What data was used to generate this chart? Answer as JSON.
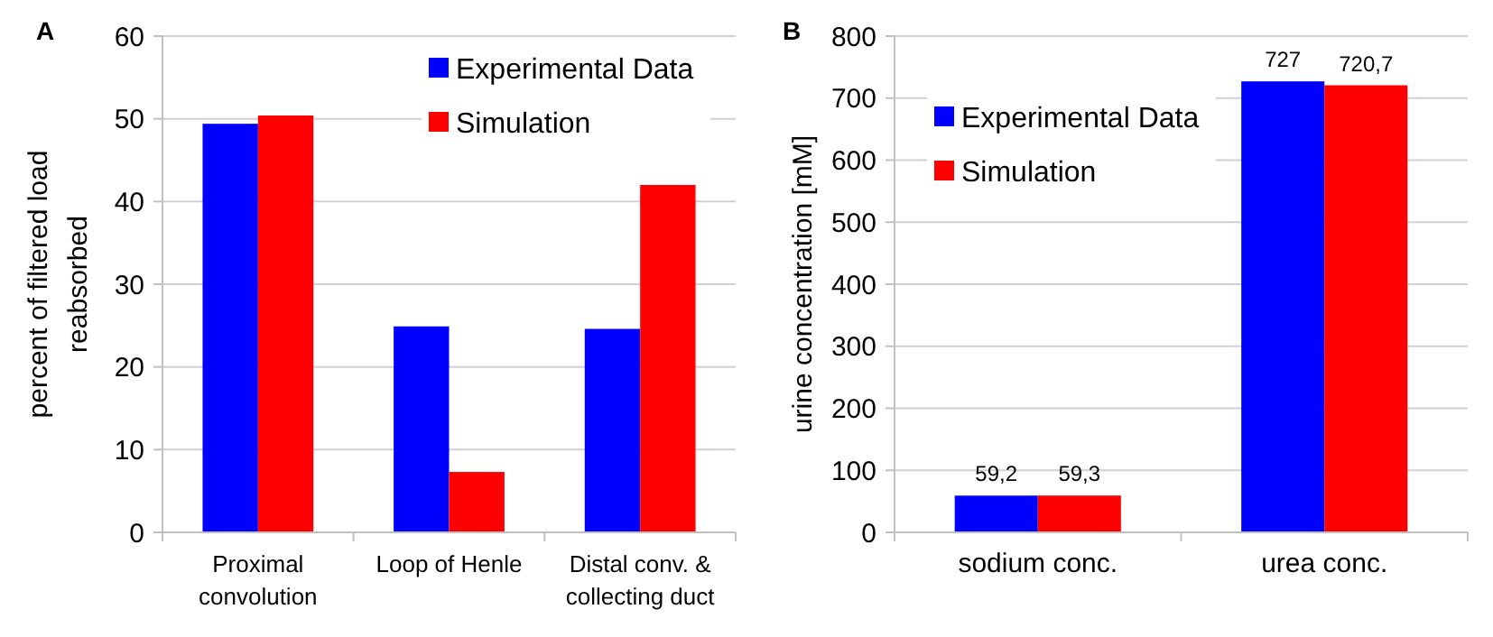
{
  "chart_data": [
    {
      "type": "bar",
      "title": "A",
      "ylabel": "percent of filtered load\nreabsorbed",
      "categories": [
        "Proximal\nconvolution",
        "Loop of Henle",
        "Distal conv. &\ncollecting duct"
      ],
      "series": [
        {
          "name": "Experimental Data",
          "color": "#0000ff",
          "values": [
            49.4,
            24.9,
            24.6
          ]
        },
        {
          "name": "Simulation",
          "color": "#ff0000",
          "values": [
            50.4,
            7.3,
            42.0
          ]
        }
      ],
      "ylim": [
        0,
        60
      ],
      "yticks": [
        0,
        10,
        20,
        30,
        40,
        50,
        60
      ],
      "grid": "y",
      "legend": "top right"
    },
    {
      "type": "bar",
      "title": "B",
      "ylabel": "urine concentration [mM]",
      "categories": [
        "sodium conc.",
        "urea conc."
      ],
      "series": [
        {
          "name": "Experimental Data",
          "color": "#0000ff",
          "values": [
            59.2,
            727
          ],
          "value_labels": [
            "59,2",
            "727"
          ]
        },
        {
          "name": "Simulation",
          "color": "#ff0000",
          "values": [
            59.3,
            720.7
          ],
          "value_labels": [
            "59,3",
            "720,7"
          ]
        }
      ],
      "ylim": [
        0,
        800
      ],
      "yticks": [
        0,
        100,
        200,
        300,
        400,
        500,
        600,
        700,
        800
      ],
      "grid": "y",
      "legend": "top left"
    }
  ]
}
